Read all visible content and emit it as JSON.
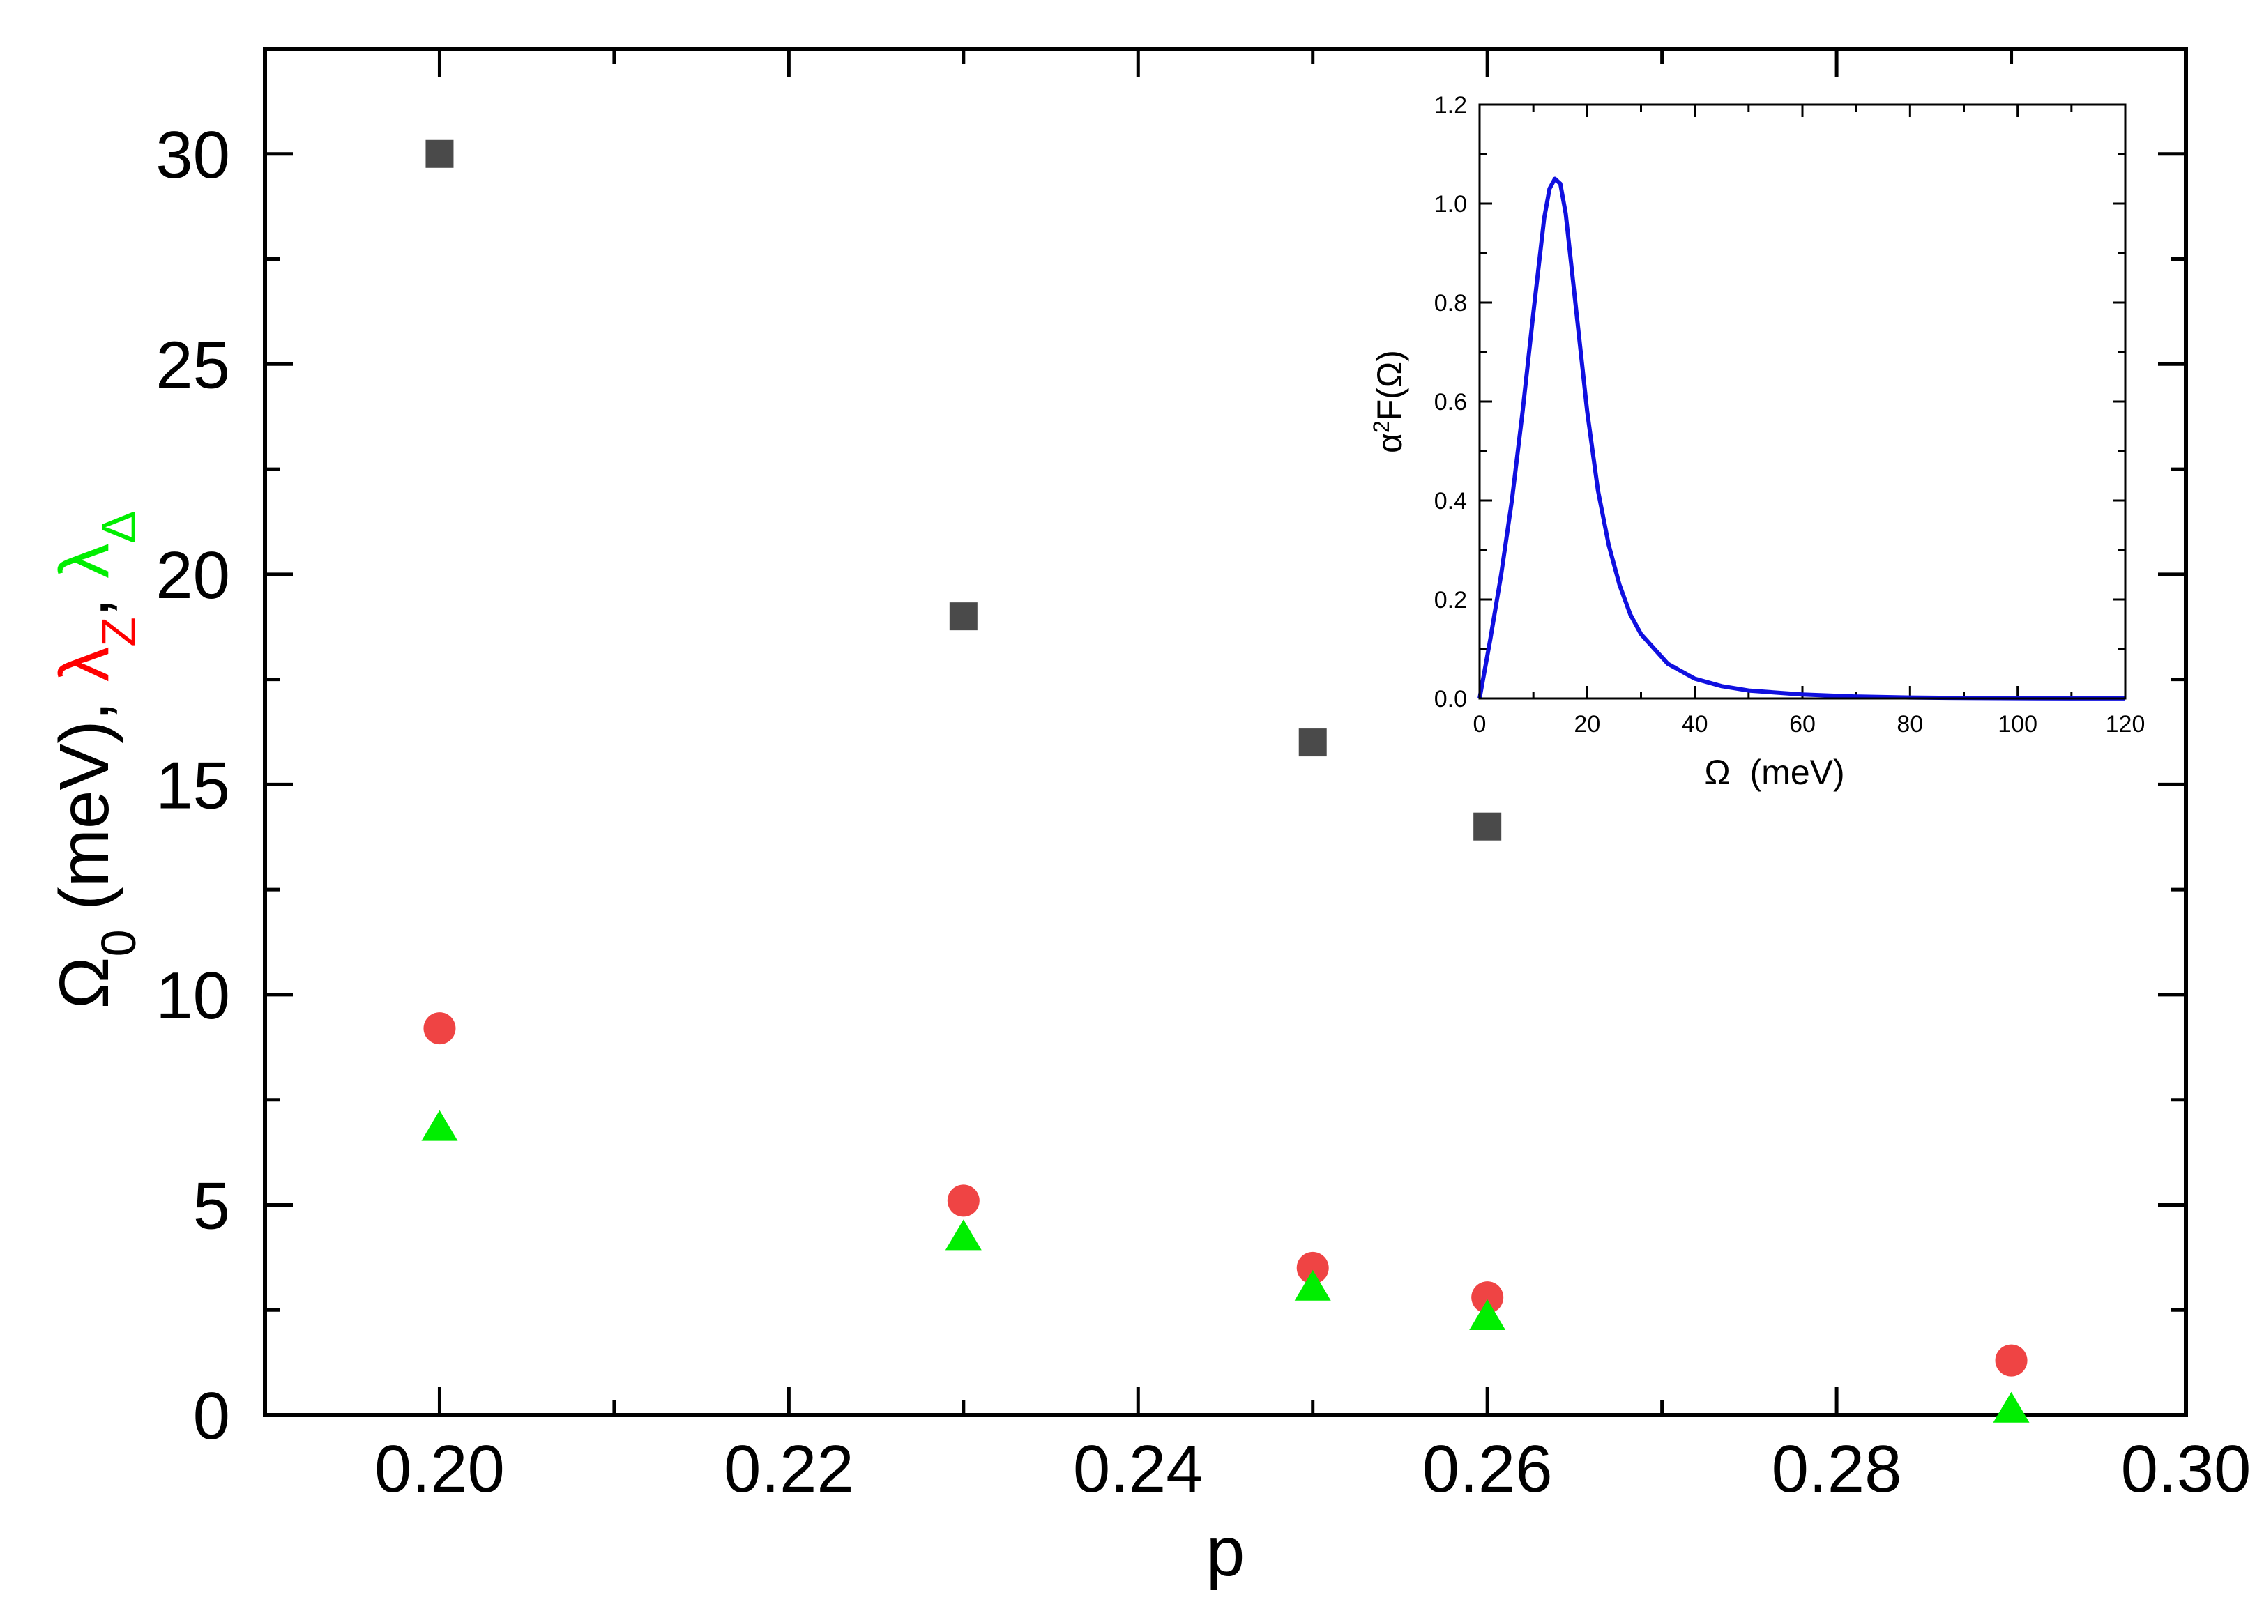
{
  "chart_data": [
    {
      "type": "scatter",
      "role": "main",
      "xlabel": "p",
      "ylabel": {
        "parts": [
          {
            "text": "Ω",
            "color": "#000000"
          },
          {
            "text": "0",
            "color": "#000000",
            "sub": true
          },
          {
            "text": " (meV), ",
            "color": "#000000"
          },
          {
            "text": "λ",
            "color": "#ff0000"
          },
          {
            "text": "Z",
            "color": "#ff0000",
            "sub": true
          },
          {
            "text": ", ",
            "color": "#000000"
          },
          {
            "text": "λ",
            "color": "#00ee00"
          },
          {
            "text": "Δ",
            "color": "#00ee00",
            "sub": true
          }
        ]
      },
      "xlim": [
        0.19,
        0.3
      ],
      "ylim": [
        0,
        32.5
      ],
      "xticks": [
        "0.20",
        "0.22",
        "0.24",
        "0.26",
        "0.28",
        "0.30"
      ],
      "xtick_values": [
        0.2,
        0.22,
        0.24,
        0.26,
        0.28,
        0.3
      ],
      "yticks": [
        "0",
        "5",
        "10",
        "15",
        "20",
        "25",
        "30"
      ],
      "ytick_values": [
        0,
        5,
        10,
        15,
        20,
        25,
        30
      ],
      "series": [
        {
          "name": "Ω0 (meV)",
          "marker": "square",
          "color": "#4a4a4a",
          "x": [
            0.2,
            0.23,
            0.25,
            0.26
          ],
          "y": [
            30,
            19,
            16,
            14
          ]
        },
        {
          "name": "λZ",
          "marker": "circle",
          "color": "#ef4444",
          "x": [
            0.2,
            0.23,
            0.25,
            0.26,
            0.29
          ],
          "y": [
            9.2,
            5.1,
            3.5,
            2.8,
            1.3
          ]
        },
        {
          "name": "λΔ",
          "marker": "triangle",
          "color": "#00ee00",
          "x": [
            0.2,
            0.23,
            0.25,
            0.26,
            0.29
          ],
          "y": [
            6.8,
            4.2,
            3.0,
            2.3,
            0.1
          ]
        }
      ]
    },
    {
      "type": "line",
      "role": "inset",
      "xlabel": "Ω  (meV)",
      "ylabel": "α²F(Ω)",
      "xlim": [
        0,
        120
      ],
      "ylim": [
        0,
        1.2
      ],
      "xticks": [
        "0",
        "20",
        "40",
        "60",
        "80",
        "100",
        "120"
      ],
      "xtick_values": [
        0,
        20,
        40,
        60,
        80,
        100,
        120
      ],
      "yticks": [
        "0.0",
        "0.2",
        "0.4",
        "0.6",
        "0.8",
        "1.0",
        "1.2"
      ],
      "ytick_values": [
        0,
        0.2,
        0.4,
        0.6,
        0.8,
        1.0,
        1.2
      ],
      "series": [
        {
          "name": "α²F(Ω)",
          "color": "#1010e0",
          "x": [
            0,
            2,
            4,
            6,
            8,
            10,
            12,
            13,
            14,
            15,
            16,
            18,
            20,
            22,
            24,
            26,
            28,
            30,
            35,
            40,
            45,
            50,
            60,
            70,
            80,
            90,
            100,
            110,
            120
          ],
          "y": [
            0,
            0.12,
            0.25,
            0.4,
            0.58,
            0.78,
            0.97,
            1.03,
            1.05,
            1.04,
            0.98,
            0.78,
            0.58,
            0.42,
            0.31,
            0.23,
            0.17,
            0.13,
            0.07,
            0.04,
            0.025,
            0.016,
            0.008,
            0.004,
            0.002,
            0.001,
            0.0005,
            0.0002,
            0.0001
          ]
        }
      ]
    }
  ]
}
